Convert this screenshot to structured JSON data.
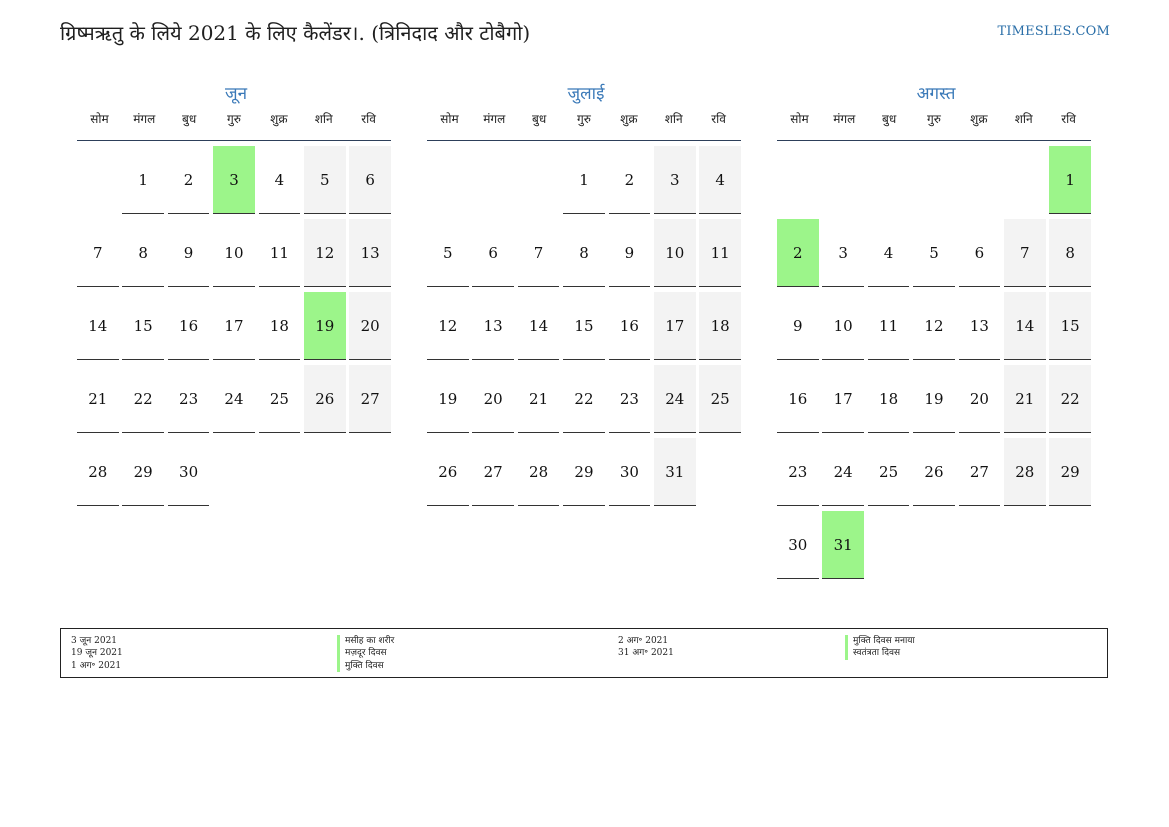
{
  "title": "ग्रिष्मऋतु के लिये 2021 के लिए कैलेंडर।. (त्रिनिदाद और टोबैगो)",
  "site": "TIMESLES.COM",
  "weekdays": [
    "सोम",
    "मंगल",
    "बुध",
    "गुरु",
    "शुक्र",
    "शनि",
    "रवि"
  ],
  "months": [
    {
      "name": "जून",
      "start_offset": 1,
      "days": 30,
      "holidays": [
        3,
        19
      ]
    },
    {
      "name": "जुलाई",
      "start_offset": 3,
      "days": 31,
      "holidays": []
    },
    {
      "name": "अगस्त",
      "start_offset": 6,
      "days": 31,
      "holidays": [
        1,
        2,
        31
      ]
    }
  ],
  "legend": {
    "col1_dates": [
      "3 जून 2021",
      "19 जून 2021",
      "1 अग॰ 2021"
    ],
    "col1_names": [
      "मसीह का शरीर",
      "मज़दूर दिवस",
      "मुक्ति दिवस"
    ],
    "col2_dates": [
      "2 अग॰ 2021",
      "31 अग॰ 2021"
    ],
    "col2_names": [
      "मुक्ति दिवस मनाया",
      "स्वतंत्रता दिवस"
    ]
  },
  "colors": {
    "holiday": "#9cf58a",
    "weekend": "#f3f3f3",
    "month_title": "#3a79b8"
  }
}
